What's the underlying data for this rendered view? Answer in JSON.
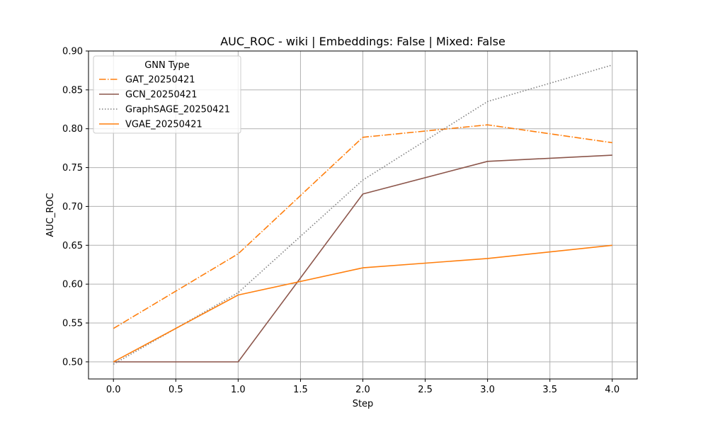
{
  "chart_data": {
    "type": "line",
    "title": "AUC_ROC - wiki | Embeddings: False | Mixed: False",
    "xlabel": "Step",
    "ylabel": "AUC_ROC",
    "xlim": [
      -0.2,
      4.2
    ],
    "ylim": [
      0.478,
      0.9
    ],
    "x_ticks": [
      0.0,
      0.5,
      1.0,
      1.5,
      2.0,
      2.5,
      3.0,
      3.5,
      4.0
    ],
    "x_tick_labels": [
      "0.0",
      "0.5",
      "1.0",
      "1.5",
      "2.0",
      "2.5",
      "3.0",
      "3.5",
      "4.0"
    ],
    "y_ticks": [
      0.5,
      0.55,
      0.6,
      0.65,
      0.7,
      0.75,
      0.8,
      0.85,
      0.9
    ],
    "y_tick_labels": [
      "0.50",
      "0.55",
      "0.60",
      "0.65",
      "0.70",
      "0.75",
      "0.80",
      "0.85",
      "0.90"
    ],
    "grid": true,
    "legend": {
      "title": "GNN Type",
      "placement": "top-left"
    },
    "x": [
      0,
      1,
      2,
      3,
      4
    ],
    "series": [
      {
        "name": "GAT_20250421",
        "values": [
          0.543,
          0.639,
          0.789,
          0.805,
          0.782
        ],
        "color": "#ff7f0e",
        "style": "dashdot"
      },
      {
        "name": "GCN_20250421",
        "values": [
          0.5,
          0.5,
          0.716,
          0.758,
          0.766
        ],
        "color": "#8c564b",
        "style": "solid"
      },
      {
        "name": "GraphSAGE_20250421",
        "values": [
          0.497,
          0.589,
          0.734,
          0.835,
          0.882
        ],
        "color": "#7f7f7f",
        "style": "dotted"
      },
      {
        "name": "VGAE_20250421",
        "values": [
          0.5,
          0.586,
          0.621,
          0.633,
          0.65
        ],
        "color": "#ff7f0e",
        "style": "solid"
      }
    ]
  }
}
